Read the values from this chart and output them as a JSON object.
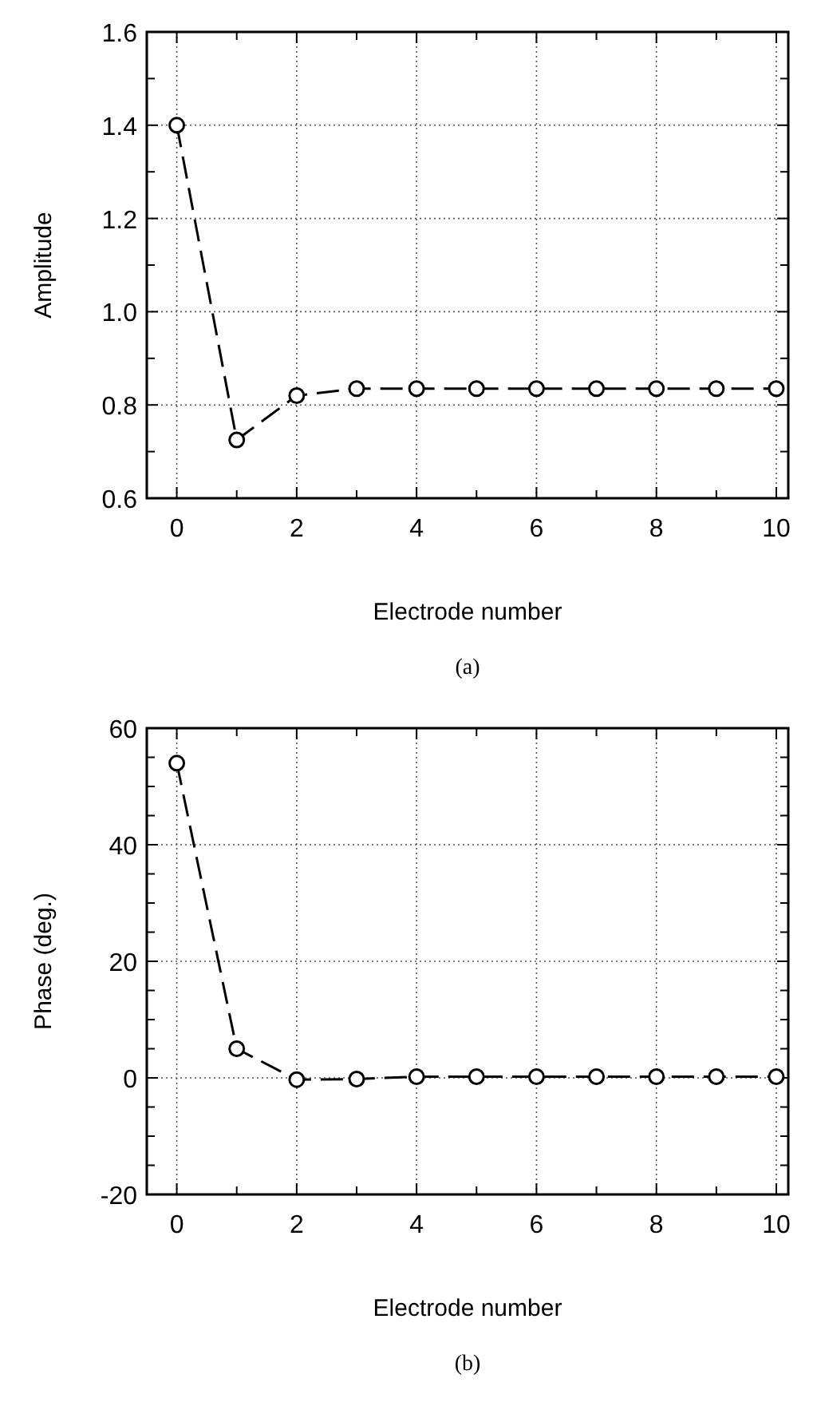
{
  "chart_data": [
    {
      "type": "line",
      "xlabel": "Electrode number",
      "ylabel": "Amplitude",
      "annotations": [
        "(a)"
      ],
      "x": [
        0,
        1,
        2,
        3,
        4,
        5,
        6,
        7,
        8,
        9,
        10
      ],
      "series": [
        {
          "color": "#000000",
          "values": [
            1.4,
            0.725,
            0.82,
            0.835,
            0.835,
            0.835,
            0.835,
            0.835,
            0.835,
            0.835,
            0.835
          ]
        }
      ],
      "xlim": [
        -0.5,
        10.2
      ],
      "xticks": [
        0,
        {
          "value": 1,
          "label": null
        },
        2,
        {
          "value": 3,
          "label": null
        },
        4,
        {
          "value": 5,
          "label": null
        },
        6,
        {
          "value": 7,
          "label": null
        },
        8,
        {
          "value": 9,
          "label": null
        },
        10
      ],
      "ylim": [
        0.6,
        1.6
      ],
      "yticks": [
        {
          "value": 0.6,
          "label": "0.6"
        },
        {
          "value": 0.7,
          "label": null
        },
        {
          "value": 0.8,
          "label": "0.8"
        },
        {
          "value": 0.9,
          "label": null
        },
        {
          "value": 1.0,
          "label": "1.0"
        },
        {
          "value": 1.1,
          "label": null
        },
        {
          "value": 1.2,
          "label": "1.2"
        },
        {
          "value": 1.3,
          "label": null
        },
        {
          "value": 1.4,
          "label": "1.4"
        },
        {
          "value": 1.5,
          "label": null
        },
        {
          "value": 1.6,
          "label": "1.6"
        }
      ],
      "grid": true,
      "marker": "circle",
      "line_style": "dashed"
    },
    {
      "type": "line",
      "xlabel": "Electrode number",
      "ylabel": "Phase (deg.)",
      "annotations": [
        "(b)"
      ],
      "x": [
        0,
        1,
        2,
        3,
        4,
        5,
        6,
        7,
        8,
        9,
        10
      ],
      "series": [
        {
          "color": "#000000",
          "values": [
            54,
            5,
            -0.3,
            -0.2,
            0.2,
            0.2,
            0.2,
            0.2,
            0.2,
            0.2,
            0.2
          ]
        }
      ],
      "xlim": [
        -0.5,
        10.2
      ],
      "xticks": [
        0,
        {
          "value": 1,
          "label": null
        },
        2,
        {
          "value": 3,
          "label": null
        },
        4,
        {
          "value": 5,
          "label": null
        },
        6,
        {
          "value": 7,
          "label": null
        },
        8,
        {
          "value": 9,
          "label": null
        },
        10
      ],
      "ylim": [
        -20,
        60
      ],
      "yticks": [
        -20,
        {
          "value": -15,
          "label": null
        },
        {
          "value": -10,
          "label": null
        },
        {
          "value": -5,
          "label": null
        },
        0,
        {
          "value": 5,
          "label": null
        },
        {
          "value": 10,
          "label": null
        },
        {
          "value": 15,
          "label": null
        },
        20,
        {
          "value": 25,
          "label": null
        },
        {
          "value": 30,
          "label": null
        },
        {
          "value": 35,
          "label": null
        },
        40,
        {
          "value": 45,
          "label": null
        },
        {
          "value": 50,
          "label": null
        },
        {
          "value": 55,
          "label": null
        },
        60
      ],
      "grid": true,
      "marker": "circle",
      "line_style": "dashed"
    }
  ]
}
